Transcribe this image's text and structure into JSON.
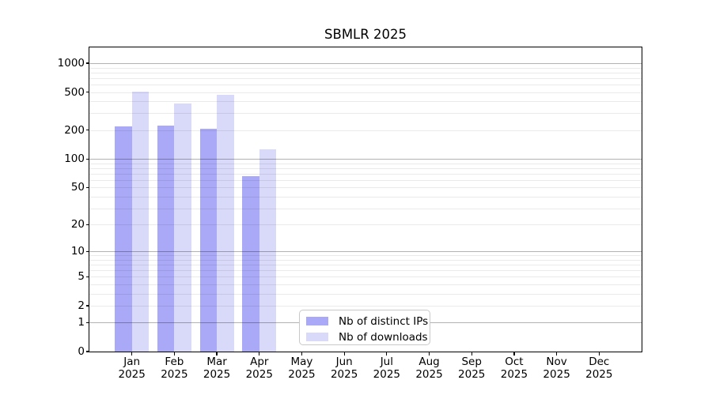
{
  "chart_data": {
    "type": "bar",
    "title": "SBMLR 2025",
    "categories": [
      "Jan",
      "Feb",
      "Mar",
      "Apr",
      "May",
      "Jun",
      "Jul",
      "Aug",
      "Sep",
      "Oct",
      "Nov",
      "Dec"
    ],
    "category_year": "2025",
    "series": [
      {
        "name": "Nb of distinct IPs",
        "color": "#a9a9f7",
        "values": [
          218,
          225,
          206,
          66,
          null,
          null,
          null,
          null,
          null,
          null,
          null,
          null
        ]
      },
      {
        "name": "Nb of downloads",
        "color": "#d9d9fa",
        "values": [
          505,
          380,
          465,
          125,
          null,
          null,
          null,
          null,
          null,
          null,
          null,
          null
        ]
      }
    ],
    "y_axis": {
      "scale": "log1p",
      "ticks": [
        0,
        1,
        2,
        5,
        10,
        20,
        50,
        100,
        200,
        500,
        1000
      ],
      "ymax": 1465
    },
    "grid": {
      "major_at": [
        1,
        10,
        100,
        1000
      ],
      "minor": "2-9 per decade",
      "major_color": "#b3b3b3",
      "minor_color": "#ebebeb"
    },
    "legend": {
      "position": "lower center"
    }
  }
}
